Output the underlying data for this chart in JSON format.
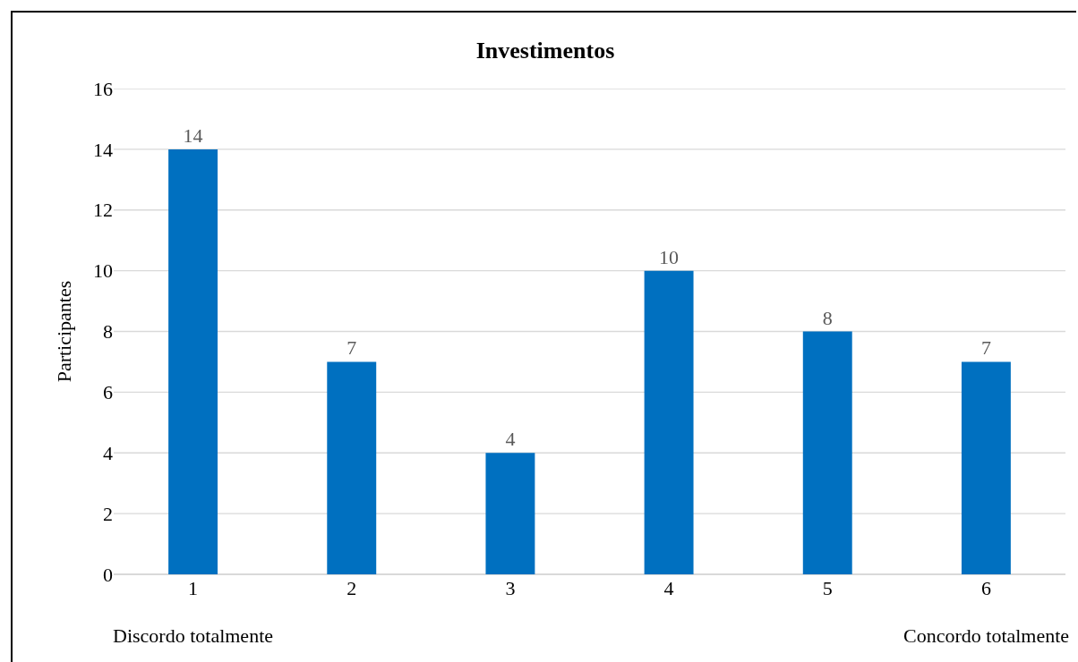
{
  "chart_data": {
    "type": "bar",
    "title": "Investimentos",
    "ylabel": "Participantes",
    "categories": [
      "1",
      "2",
      "3",
      "4",
      "5",
      "6"
    ],
    "values": [
      14,
      7,
      4,
      10,
      8,
      7
    ],
    "color": "#0070c0",
    "ylim": [
      0,
      16
    ],
    "yticks": [
      0,
      2,
      4,
      6,
      8,
      10,
      12,
      14,
      16
    ],
    "grid": "y",
    "data_labels": true,
    "annotations": [
      "Discordo totalmente",
      "Concordo totalmente"
    ]
  }
}
